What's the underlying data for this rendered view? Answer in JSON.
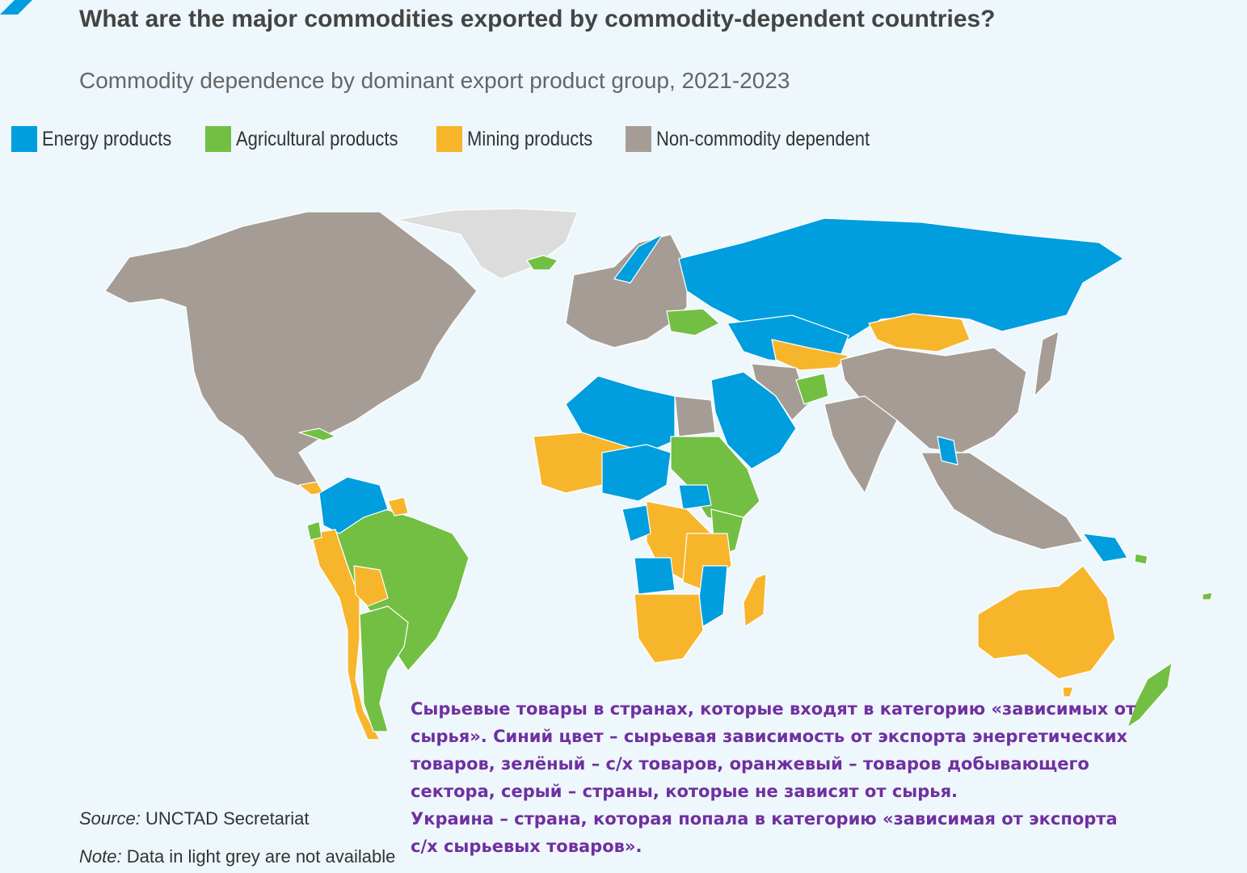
{
  "header": {
    "title": "What are the major commodities exported by commodity-dependent countries?",
    "subtitle": "Commodity dependence by dominant export product group, 2021-2023"
  },
  "legend": [
    {
      "label": "Energy products",
      "color": "#009ede"
    },
    {
      "label": "Agricultural products",
      "color": "#72bf44"
    },
    {
      "label": "Mining products",
      "color": "#f7b52c"
    },
    {
      "label": "Non-commodity dependent",
      "color": "#a59d95"
    }
  ],
  "colors": {
    "no_data": "#dcdcdc",
    "ocean": "#eef7fb",
    "annotation_text": "#7030a0"
  },
  "footer": {
    "source_label": "Source:",
    "source_text": "UNCTAD Secretariat",
    "note_label": "Note:",
    "note_text": "Data in light grey are not available"
  },
  "annotation": {
    "lines": [
      "Сырьевые товары в странах, которые входят в категорию «зависимых от",
      "сырья». Синий цвет – сырьевая зависимость от экспорта энергетических",
      "товаров, зелёный – с/х товаров, оранжевый – товаров добывающего",
      "сектора, серый – страны, которые не зависят от сырья.",
      "Украина – страна, которая попала в категорию «зависимая от экспорта",
      "с/х сырьевых товаров»."
    ]
  }
}
